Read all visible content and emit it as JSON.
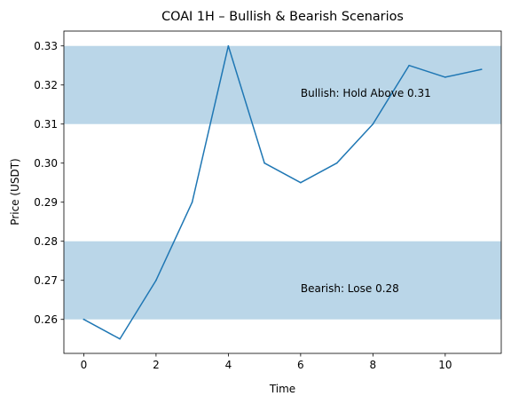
{
  "chart_data": {
    "type": "line",
    "title": "COAI 1H – Bullish & Bearish Scenarios",
    "xlabel": "Time",
    "ylabel": "Price (USDT)",
    "xlim": [
      -0.55,
      11.55
    ],
    "ylim": [
      0.2513,
      0.3338
    ],
    "x_ticks": [
      0,
      2,
      4,
      6,
      8,
      10
    ],
    "y_ticks": [
      0.26,
      0.27,
      0.28,
      0.29,
      0.3,
      0.31,
      0.32,
      0.33
    ],
    "x_tick_labels": [
      "0",
      "2",
      "4",
      "6",
      "8",
      "10"
    ],
    "y_tick_labels": [
      "0.26",
      "0.27",
      "0.28",
      "0.29",
      "0.30",
      "0.31",
      "0.32",
      "0.33"
    ],
    "series": [
      {
        "x": [
          0,
          1,
          2,
          3,
          4,
          5,
          6,
          7,
          8,
          9,
          10,
          11
        ],
        "values": [
          0.26,
          0.255,
          0.27,
          0.29,
          0.33,
          0.3,
          0.295,
          0.3,
          0.31,
          0.325,
          0.322,
          0.324
        ],
        "color": "#1f77b4"
      }
    ],
    "bands": [
      {
        "y0": 0.31,
        "y1": 0.33,
        "color": "#bad6e8"
      },
      {
        "y0": 0.26,
        "y1": 0.28,
        "color": "#bad6e8"
      }
    ],
    "annotations": [
      {
        "text": "Bullish: Hold Above 0.31",
        "x": 6,
        "y": 0.318
      },
      {
        "text": "Bearish: Lose 0.28",
        "x": 6,
        "y": 0.268
      }
    ],
    "grid": false,
    "legend": "none"
  }
}
